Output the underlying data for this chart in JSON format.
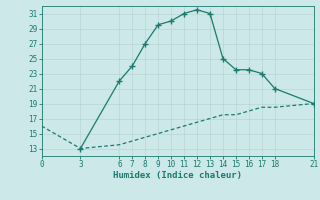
{
  "title": "",
  "xlabel": "Humidex (Indice chaleur)",
  "upper_x": [
    3,
    6,
    7,
    8,
    9,
    10,
    11,
    12,
    13,
    14,
    15,
    16,
    17,
    18,
    21
  ],
  "upper_y": [
    13,
    22,
    24,
    27,
    29.5,
    30,
    31,
    31.5,
    31,
    25,
    23.5,
    23.5,
    23,
    21,
    19
  ],
  "lower_x": [
    0,
    3,
    6,
    7,
    8,
    9,
    10,
    11,
    12,
    13,
    14,
    15,
    16,
    17,
    18,
    21
  ],
  "lower_y": [
    16,
    13,
    13.5,
    14,
    14.5,
    15,
    15.5,
    16,
    16.5,
    17,
    17.5,
    17.5,
    18,
    18.5,
    18.5,
    19
  ],
  "line_color": "#1a7a6e",
  "bg_color": "#cce8e8",
  "grid_major_color": "#b8d4d4",
  "grid_minor_color": "#d4e8e8",
  "xticks": [
    0,
    3,
    6,
    7,
    8,
    9,
    10,
    11,
    12,
    13,
    14,
    15,
    16,
    17,
    18,
    21
  ],
  "yticks": [
    13,
    15,
    17,
    19,
    21,
    23,
    25,
    27,
    29,
    31
  ],
  "xlim": [
    0,
    21
  ],
  "ylim": [
    12,
    32
  ]
}
